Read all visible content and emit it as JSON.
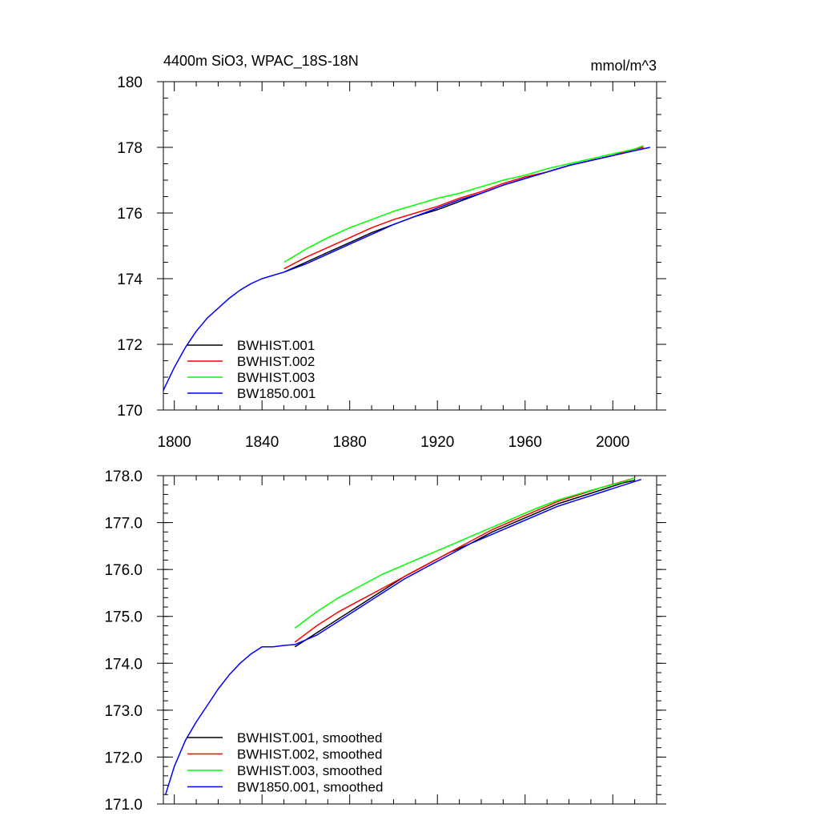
{
  "chart_data": [
    {
      "type": "line",
      "title": "4400m SiO3, WPAC_18S-18N",
      "units": "mmol/m^3",
      "xlim": [
        1795,
        2020
      ],
      "ylim": [
        170,
        180
      ],
      "xticks": [
        1800,
        1840,
        1880,
        1920,
        1960,
        2000
      ],
      "xtick_labels": [
        "1800",
        "1840",
        "1880",
        "1920",
        "1960",
        "2000"
      ],
      "yticks": [
        170,
        172,
        174,
        176,
        178,
        180
      ],
      "ytick_labels": [
        "170",
        "172",
        "174",
        "176",
        "178",
        "180"
      ],
      "legend_position": "bottom-left",
      "series": [
        {
          "name": "BWHIST.001",
          "color": "#000000",
          "x": [
            1850,
            1860,
            1870,
            1880,
            1890,
            1900,
            1910,
            1920,
            1930,
            1940,
            1950,
            1960,
            1970,
            1980,
            1990,
            2000,
            2010,
            2014
          ],
          "y": [
            174.2,
            174.5,
            174.8,
            175.1,
            175.4,
            175.65,
            175.9,
            176.1,
            176.35,
            176.6,
            176.85,
            177.05,
            177.25,
            177.45,
            177.6,
            177.75,
            177.95,
            178.0
          ]
        },
        {
          "name": "BWHIST.002",
          "color": "#ff0000",
          "x": [
            1850,
            1860,
            1870,
            1880,
            1890,
            1900,
            1910,
            1920,
            1930,
            1940,
            1950,
            1960,
            1970,
            1980,
            1990,
            2000,
            2010,
            2014
          ],
          "y": [
            174.3,
            174.65,
            174.95,
            175.25,
            175.55,
            175.8,
            176.0,
            176.2,
            176.45,
            176.65,
            176.9,
            177.1,
            177.25,
            177.45,
            177.6,
            177.75,
            177.95,
            178.0
          ]
        },
        {
          "name": "BWHIST.003",
          "color": "#00ff00",
          "x": [
            1850,
            1860,
            1870,
            1880,
            1890,
            1900,
            1910,
            1920,
            1930,
            1940,
            1950,
            1960,
            1970,
            1980,
            1990,
            2000,
            2010,
            2014
          ],
          "y": [
            174.5,
            174.9,
            175.25,
            175.55,
            175.8,
            176.05,
            176.25,
            176.45,
            176.6,
            176.8,
            177.0,
            177.15,
            177.35,
            177.5,
            177.65,
            177.8,
            177.95,
            178.05
          ]
        },
        {
          "name": "BW1850.001",
          "color": "#0000ff",
          "x": [
            1795,
            1800,
            1805,
            1810,
            1815,
            1820,
            1825,
            1830,
            1835,
            1840,
            1845,
            1850,
            1860,
            1870,
            1880,
            1890,
            1900,
            1910,
            1920,
            1930,
            1940,
            1950,
            1960,
            1970,
            1980,
            1990,
            2000,
            2010,
            2017
          ],
          "y": [
            170.6,
            171.3,
            171.9,
            172.4,
            172.8,
            173.1,
            173.4,
            173.65,
            173.85,
            174.0,
            174.1,
            174.2,
            174.45,
            174.75,
            175.05,
            175.35,
            175.65,
            175.9,
            176.15,
            176.4,
            176.6,
            176.85,
            177.05,
            177.25,
            177.45,
            177.6,
            177.75,
            177.9,
            178.0
          ]
        }
      ]
    },
    {
      "type": "line",
      "title": "",
      "xlim": [
        1795,
        2020
      ],
      "ylim": [
        171.0,
        178.0
      ],
      "xticks": [
        1800,
        1840,
        1880,
        1920,
        1960,
        2000
      ],
      "yticks": [
        171.0,
        172.0,
        173.0,
        174.0,
        175.0,
        176.0,
        177.0,
        178.0
      ],
      "ytick_labels": [
        "171.0",
        "172.0",
        "173.0",
        "174.0",
        "175.0",
        "176.0",
        "177.0",
        "178.0"
      ],
      "legend_position": "bottom-left",
      "series": [
        {
          "name": "BWHIST.001, smoothed",
          "color": "#000000",
          "x": [
            1855,
            1865,
            1875,
            1885,
            1895,
            1905,
            1915,
            1925,
            1935,
            1945,
            1955,
            1965,
            1975,
            1985,
            1995,
            2005,
            2010
          ],
          "y": [
            174.35,
            174.65,
            174.95,
            175.25,
            175.55,
            175.85,
            176.1,
            176.35,
            176.55,
            176.8,
            177.0,
            177.2,
            177.4,
            177.55,
            177.7,
            177.85,
            177.9
          ]
        },
        {
          "name": "BWHIST.002, smoothed",
          "color": "#ff0000",
          "x": [
            1855,
            1865,
            1875,
            1885,
            1895,
            1905,
            1915,
            1925,
            1935,
            1945,
            1955,
            1965,
            1975,
            1985,
            1995,
            2005,
            2010
          ],
          "y": [
            174.45,
            174.8,
            175.1,
            175.35,
            175.6,
            175.85,
            176.1,
            176.35,
            176.6,
            176.85,
            177.05,
            177.25,
            177.45,
            177.6,
            177.75,
            177.88,
            177.95
          ]
        },
        {
          "name": "BWHIST.003, smoothed",
          "color": "#00ff00",
          "x": [
            1855,
            1865,
            1875,
            1885,
            1895,
            1905,
            1915,
            1925,
            1935,
            1945,
            1955,
            1965,
            1975,
            1985,
            1995,
            2005,
            2010
          ],
          "y": [
            174.75,
            175.1,
            175.4,
            175.65,
            175.9,
            176.1,
            176.3,
            176.5,
            176.7,
            176.9,
            177.1,
            177.3,
            177.48,
            177.62,
            177.75,
            177.87,
            177.95
          ]
        },
        {
          "name": "BW1850.001, smoothed",
          "color": "#0000ff",
          "x": [
            1796,
            1800,
            1805,
            1810,
            1815,
            1820,
            1825,
            1830,
            1835,
            1840,
            1845,
            1850,
            1855,
            1865,
            1875,
            1885,
            1895,
            1905,
            1915,
            1925,
            1935,
            1945,
            1955,
            1965,
            1975,
            1985,
            1995,
            2005,
            2013
          ],
          "y": [
            171.2,
            171.8,
            172.35,
            172.75,
            173.1,
            173.45,
            173.75,
            174.0,
            174.2,
            174.35,
            174.35,
            174.38,
            174.4,
            174.6,
            174.9,
            175.2,
            175.5,
            175.8,
            176.05,
            176.3,
            176.55,
            176.75,
            176.95,
            177.15,
            177.35,
            177.5,
            177.65,
            177.8,
            177.92
          ]
        }
      ]
    }
  ]
}
